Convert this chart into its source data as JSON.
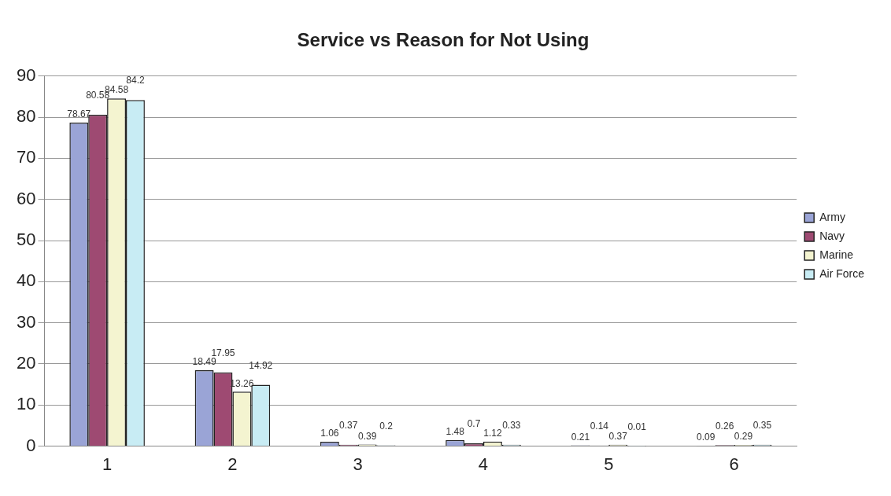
{
  "chart_data": {
    "type": "bar",
    "title": "Service vs Reason for Not Using",
    "categories": [
      "1",
      "2",
      "3",
      "4",
      "5",
      "6"
    ],
    "series": [
      {
        "name": "Army",
        "color": "#9aa4d6",
        "values": [
          78.67,
          18.49,
          1.06,
          1.48,
          0.21,
          0.09
        ]
      },
      {
        "name": "Navy",
        "color": "#9e4a72",
        "values": [
          80.58,
          17.95,
          0.37,
          0.7,
          0.14,
          0.26
        ]
      },
      {
        "name": "Marine",
        "color": "#f4f4d0",
        "values": [
          84.58,
          13.26,
          0.39,
          1.12,
          0.37,
          0.29
        ]
      },
      {
        "name": "Air Force",
        "color": "#c8ecf4",
        "values": [
          84.2,
          14.92,
          0.2,
          0.33,
          0.01,
          0.35
        ]
      }
    ],
    "ylim": [
      0,
      90
    ],
    "yticks": [
      0,
      10,
      20,
      30,
      40,
      50,
      60,
      70,
      80,
      90
    ],
    "grid": "y",
    "legend": "right",
    "data_labels": true
  }
}
